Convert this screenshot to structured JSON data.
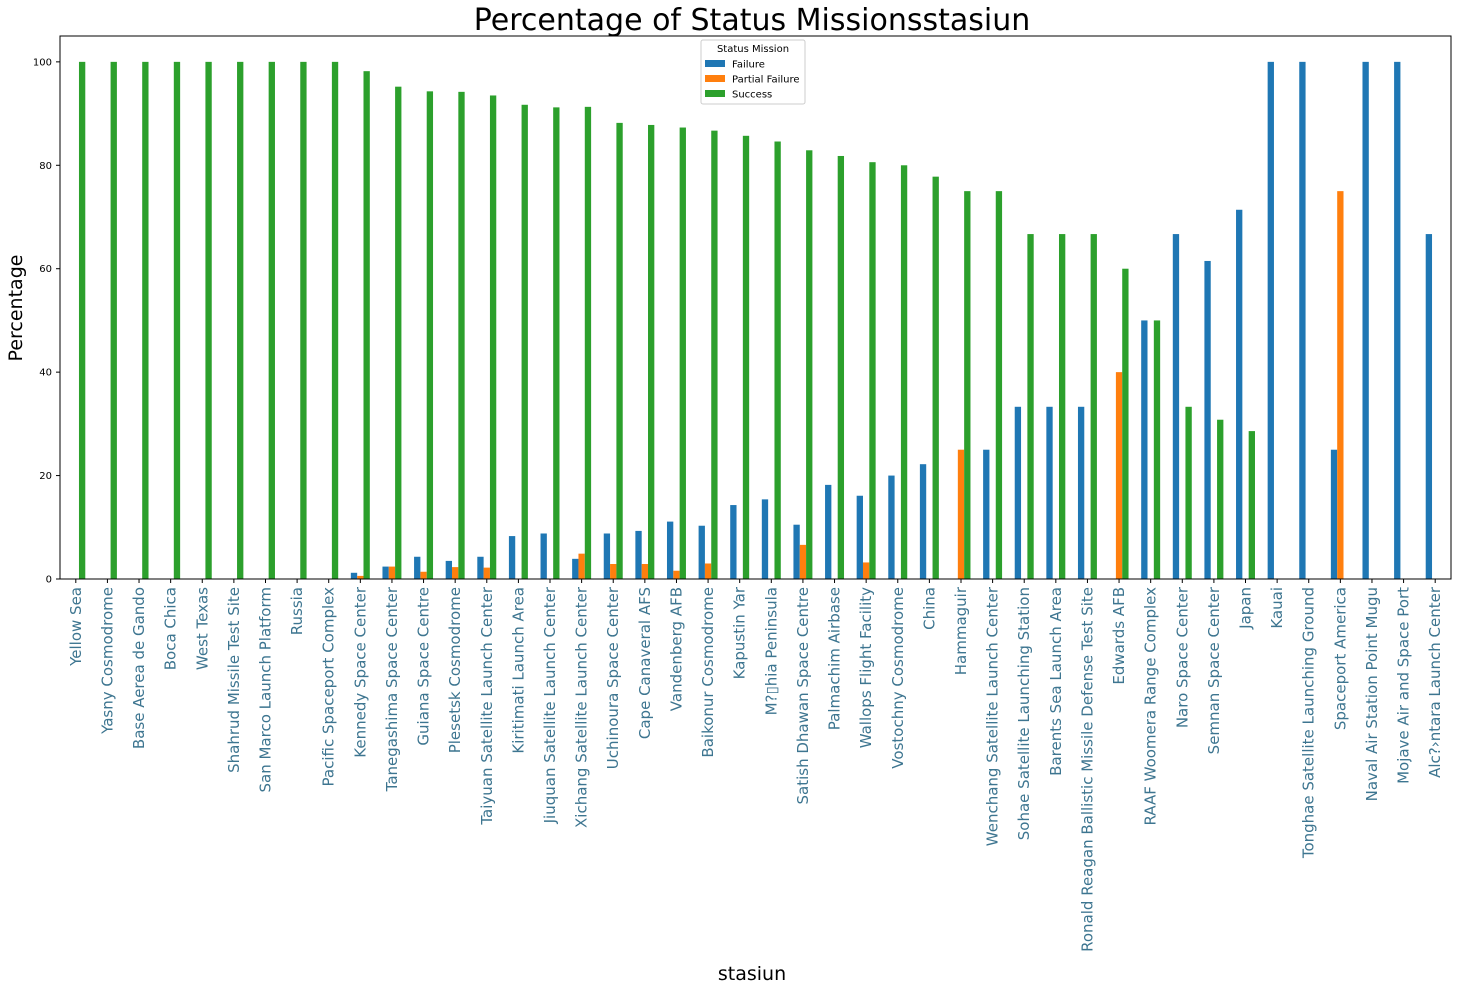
{
  "chart_data": {
    "type": "bar",
    "title": "Percentage of Status Missionsstasiun",
    "xlabel": "stasiun",
    "ylabel": "Percentage",
    "ylim": [
      0,
      105
    ],
    "yticks": [
      "0",
      "20",
      "40",
      "60",
      "80",
      "100"
    ],
    "grid": false,
    "legend": {
      "title": "Status Mission",
      "placement": "top-center"
    },
    "tick_label_color": "#3d7590",
    "categories": [
      "Yellow Sea",
      "Yasny Cosmodrome",
      "Base Aerea de Gando",
      "Boca Chica",
      "West Texas",
      "Shahrud Missile Test Site",
      "San Marco Launch Platform",
      "Russia",
      "Pacific Spaceport Complex",
      "Kennedy Space Center",
      "Tanegashima Space Center",
      "Guiana Space Centre",
      "Plesetsk Cosmodrome",
      "Taiyuan Satellite Launch Center",
      "Kiritimati Launch Area",
      "Jiuquan Satellite Launch Center",
      "Xichang Satellite Launch Center",
      "Uchinoura Space Center",
      "Cape Canaveral AFS",
      "Vandenberg AFB",
      "Baikonur Cosmodrome",
      "Kapustin Yar",
      "M?▯hia Peninsula",
      "Satish Dhawan Space Centre",
      "Palmachim Airbase",
      "Wallops Flight Facility",
      "Vostochny Cosmodrome",
      "China",
      "Hammaguir",
      "Wenchang Satellite Launch Center",
      "Sohae Satellite Launching Station",
      "Barents Sea Launch Area",
      "Ronald Reagan Ballistic Missile Defense Test Site",
      "Edwards AFB",
      "RAAF Woomera Range Complex",
      "Naro Space Center",
      "Semnan Space Center",
      "Japan",
      "Kauai",
      "Tonghae Satellite Launching Ground",
      "Spaceport America",
      "Naval Air Station Point Mugu",
      "Mojave Air and Space Port",
      "Alc?›ntara Launch Center"
    ],
    "series": [
      {
        "name": "Failure",
        "color": "#1f77b4",
        "values": [
          0,
          0,
          0,
          0,
          0,
          0,
          0,
          0,
          0,
          1.2,
          2.4,
          4.3,
          3.5,
          4.3,
          8.3,
          8.8,
          3.9,
          8.8,
          9.3,
          11.1,
          10.3,
          14.3,
          15.4,
          10.5,
          18.2,
          16.1,
          20.0,
          22.2,
          0,
          25.0,
          33.3,
          33.3,
          33.3,
          0,
          50.0,
          66.7,
          61.5,
          71.4,
          100,
          100,
          25.0,
          100,
          100,
          66.7
        ]
      },
      {
        "name": "Partial Failure",
        "color": "#ff7f0e",
        "values": [
          0,
          0,
          0,
          0,
          0,
          0,
          0,
          0,
          0,
          0.6,
          2.4,
          1.4,
          2.3,
          2.2,
          0,
          0,
          4.9,
          2.9,
          2.9,
          1.6,
          3.0,
          0,
          0,
          6.6,
          0,
          3.2,
          0,
          0,
          25.0,
          0,
          0,
          0,
          0,
          40.0,
          0,
          0,
          0,
          0,
          0,
          0,
          75.0,
          0,
          0,
          0
        ]
      },
      {
        "name": "Success",
        "color": "#2ca02c",
        "values": [
          100,
          100,
          100,
          100,
          100,
          100,
          100,
          100,
          100,
          98.2,
          95.2,
          94.3,
          94.2,
          93.5,
          91.7,
          91.2,
          91.3,
          88.2,
          87.8,
          87.3,
          86.7,
          85.7,
          84.6,
          82.9,
          81.8,
          80.6,
          80.0,
          77.8,
          75.0,
          75.0,
          66.7,
          66.7,
          66.7,
          60.0,
          50.0,
          33.3,
          30.8,
          28.6,
          0,
          0,
          0,
          0,
          0,
          0
        ]
      }
    ]
  }
}
